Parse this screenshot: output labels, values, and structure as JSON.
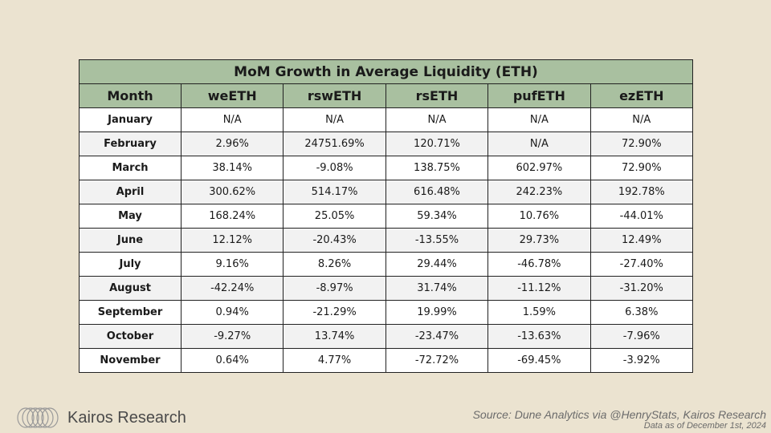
{
  "chart_data": {
    "type": "table",
    "title": "MoM Growth in Average Liquidity (ETH)",
    "columns": [
      "Month",
      "weETH",
      "rswETH",
      "rsETH",
      "pufETH",
      "ezETH"
    ],
    "rows": [
      [
        "January",
        "N/A",
        "N/A",
        "N/A",
        "N/A",
        "N/A"
      ],
      [
        "February",
        "2.96%",
        "24751.69%",
        "120.71%",
        "N/A",
        "72.90%"
      ],
      [
        "March",
        "38.14%",
        "-9.08%",
        "138.75%",
        "602.97%",
        "72.90%"
      ],
      [
        "April",
        "300.62%",
        "514.17%",
        "616.48%",
        "242.23%",
        "192.78%"
      ],
      [
        "May",
        "168.24%",
        "25.05%",
        "59.34%",
        "10.76%",
        "-44.01%"
      ],
      [
        "June",
        "12.12%",
        "-20.43%",
        "-13.55%",
        "29.73%",
        "12.49%"
      ],
      [
        "July",
        "9.16%",
        "8.26%",
        "29.44%",
        "-46.78%",
        "-27.40%"
      ],
      [
        "August",
        "-42.24%",
        "-8.97%",
        "31.74%",
        "-11.12%",
        "-31.20%"
      ],
      [
        "September",
        "0.94%",
        "-21.29%",
        "19.99%",
        "1.59%",
        "6.38%"
      ],
      [
        "October",
        "-9.27%",
        "13.74%",
        "-23.47%",
        "-13.63%",
        "-7.96%"
      ],
      [
        "November",
        "0.64%",
        "4.77%",
        "-72.72%",
        "-69.45%",
        "-3.92%"
      ]
    ]
  },
  "footer": {
    "brand": "Kairos Research",
    "brand_icon": "rings-logo-icon",
    "source": "Source: Dune Analytics via @HenryStats, Kairos Research",
    "date_note": "Data as of December 1st, 2024"
  },
  "colors": {
    "background": "#ebe3d0",
    "header_fill": "#a9c0a0",
    "row_alt": "#f2f2f2"
  }
}
